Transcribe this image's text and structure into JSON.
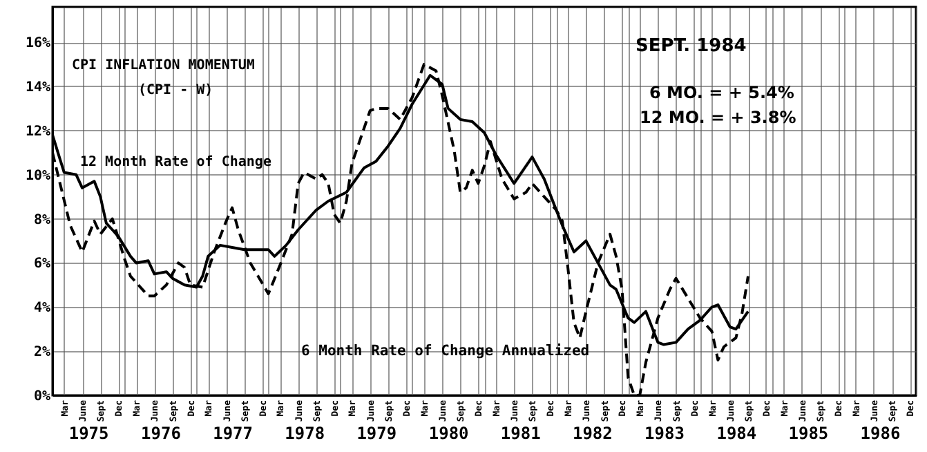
{
  "chart_data": {
    "type": "line",
    "title": "CPI INFLATION MOMENTUM",
    "subtitle": "(CPI - W)",
    "annotations": [
      "SEPT.   1984",
      "6 MO. =   + 5.4%",
      "12 MO. =  + 3.8%"
    ],
    "series": [
      {
        "name": "12 Month Rate of Change",
        "color": "#000000",
        "line_style": "solid",
        "x": [
          "1975-01",
          "1975-02",
          "1975-03",
          "1975-05",
          "1975-06",
          "1975-08",
          "1975-09",
          "1975-10",
          "1975-11",
          "1975-12",
          "1976-02",
          "1976-03",
          "1976-05",
          "1976-06",
          "1976-08",
          "1976-09",
          "1976-11",
          "1977-01",
          "1977-02",
          "1977-03",
          "1977-05",
          "1977-07",
          "1977-09",
          "1977-11",
          "1978-01",
          "1978-02",
          "1978-04",
          "1978-06",
          "1978-09",
          "1978-11",
          "1979-02",
          "1979-05",
          "1979-07",
          "1979-09",
          "1979-11",
          "1980-01",
          "1980-04",
          "1980-05",
          "1980-06",
          "1980-07",
          "1980-09",
          "1980-11",
          "1981-01",
          "1981-03",
          "1981-06",
          "1981-09",
          "1981-11",
          "1982-01",
          "1982-02",
          "1982-04",
          "1982-06",
          "1982-08",
          "1982-10",
          "1982-11",
          "1983-01",
          "1983-02",
          "1983-04",
          "1983-06",
          "1983-07",
          "1983-09",
          "1983-11",
          "1984-01",
          "1984-03",
          "1984-04",
          "1984-06",
          "1984-07",
          "1984-09"
        ],
        "values": [
          11.8,
          10.9,
          10.1,
          10.0,
          9.4,
          9.7,
          9.0,
          7.8,
          7.5,
          7.2,
          6.3,
          6.0,
          6.1,
          5.5,
          5.6,
          5.3,
          5.0,
          4.9,
          5.4,
          6.3,
          6.8,
          6.7,
          6.6,
          6.6,
          6.6,
          6.3,
          6.8,
          7.5,
          8.4,
          8.8,
          9.2,
          10.3,
          10.6,
          11.3,
          12.1,
          13.2,
          14.5,
          14.3,
          14.1,
          13.0,
          12.5,
          12.4,
          11.9,
          10.9,
          9.6,
          10.8,
          9.8,
          8.4,
          7.7,
          6.5,
          7.0,
          6.0,
          5.0,
          4.8,
          3.5,
          3.3,
          3.8,
          2.4,
          2.3,
          2.4,
          3.0,
          3.4,
          4.0,
          4.1,
          3.1,
          3.0,
          3.8
        ]
      },
      {
        "name": "6 Month Rate of Change Annualized",
        "color": "#000000",
        "line_style": "dashed",
        "x": [
          "1975-01",
          "1975-04",
          "1975-06",
          "1975-08",
          "1975-09",
          "1975-11",
          "1976-01",
          "1976-02",
          "1976-05",
          "1976-06",
          "1976-08",
          "1976-10",
          "1976-11",
          "1976-12",
          "1977-02",
          "1977-04",
          "1977-06",
          "1977-07",
          "1977-08",
          "1977-10",
          "1978-01",
          "1978-03",
          "1978-05",
          "1978-06",
          "1978-07",
          "1978-09",
          "1978-10",
          "1978-11",
          "1978-12",
          "1979-01",
          "1979-02",
          "1979-03",
          "1979-06",
          "1979-07",
          "1979-09",
          "1979-11",
          "1980-01",
          "1980-03",
          "1980-05",
          "1980-06",
          "1980-08",
          "1980-09",
          "1980-10",
          "1980-11",
          "1980-12",
          "1981-01",
          "1981-02",
          "1981-04",
          "1981-06",
          "1981-08",
          "1981-09",
          "1982-01",
          "1982-02",
          "1982-03",
          "1982-04",
          "1982-05",
          "1982-06",
          "1982-08",
          "1982-10",
          "1982-11",
          "1982-12",
          "1983-01",
          "1983-02",
          "1983-03",
          "1983-04",
          "1983-06",
          "1983-08",
          "1983-09",
          "1983-11",
          "1984-01",
          "1984-03",
          "1984-04",
          "1984-05",
          "1984-07",
          "1984-08",
          "1984-09"
        ],
        "values": [
          11.0,
          7.7,
          6.5,
          7.9,
          7.3,
          8.0,
          6.2,
          5.4,
          4.5,
          4.5,
          5.0,
          6.0,
          5.8,
          5.0,
          4.9,
          6.5,
          7.9,
          8.5,
          7.5,
          6.0,
          4.6,
          5.9,
          7.3,
          9.6,
          10.1,
          9.8,
          10.0,
          9.6,
          8.2,
          7.8,
          8.8,
          10.5,
          12.9,
          13.0,
          13.0,
          12.5,
          13.5,
          15.0,
          14.7,
          13.6,
          11.1,
          9.2,
          9.4,
          10.2,
          9.6,
          10.4,
          11.5,
          9.8,
          8.9,
          9.2,
          9.6,
          8.4,
          7.9,
          5.8,
          3.3,
          2.6,
          3.8,
          6.0,
          7.3,
          6.3,
          4.8,
          0.8,
          0.0,
          0.0,
          1.5,
          3.5,
          4.8,
          5.3,
          4.4,
          3.5,
          2.9,
          1.6,
          2.2,
          2.6,
          3.7,
          5.4
        ]
      }
    ],
    "xlim": [
      "1975-01",
      "1987-01"
    ],
    "xticks": [
      {
        "value": "1975-01",
        "label": null
      },
      {
        "value": "1975-03",
        "label": "Mar"
      },
      {
        "value": "1975-06",
        "label": "June"
      },
      {
        "value": "1975-09",
        "label": "Sept"
      },
      {
        "value": "1975-12",
        "label": "Dec"
      },
      {
        "value": "1976-01",
        "label": null
      },
      {
        "value": "1976-03",
        "label": "Mar"
      },
      {
        "value": "1976-06",
        "label": "June"
      },
      {
        "value": "1976-09",
        "label": "Sept"
      },
      {
        "value": "1976-12",
        "label": "Dec"
      },
      {
        "value": "1977-01",
        "label": null
      },
      {
        "value": "1977-03",
        "label": "Mar"
      },
      {
        "value": "1977-06",
        "label": "June"
      },
      {
        "value": "1977-09",
        "label": "Sept"
      },
      {
        "value": "1977-12",
        "label": "Dec"
      },
      {
        "value": "1978-01",
        "label": null
      },
      {
        "value": "1978-03",
        "label": "Mar"
      },
      {
        "value": "1978-06",
        "label": "June"
      },
      {
        "value": "1978-09",
        "label": "Sept"
      },
      {
        "value": "1978-12",
        "label": "Dec"
      },
      {
        "value": "1979-01",
        "label": null
      },
      {
        "value": "1979-03",
        "label": "Mar"
      },
      {
        "value": "1979-06",
        "label": "June"
      },
      {
        "value": "1979-09",
        "label": "Sept"
      },
      {
        "value": "1979-12",
        "label": "Dec"
      },
      {
        "value": "1980-01",
        "label": null
      },
      {
        "value": "1980-03",
        "label": "Mar"
      },
      {
        "value": "1980-06",
        "label": "June"
      },
      {
        "value": "1980-09",
        "label": "Sept"
      },
      {
        "value": "1980-12",
        "label": "Dec"
      },
      {
        "value": "1981-01",
        "label": null
      },
      {
        "value": "1981-03",
        "label": "Mar"
      },
      {
        "value": "1981-06",
        "label": "June"
      },
      {
        "value": "1981-09",
        "label": "Sept"
      },
      {
        "value": "1981-12",
        "label": "Dec"
      },
      {
        "value": "1982-01",
        "label": null
      },
      {
        "value": "1982-03",
        "label": "Mar"
      },
      {
        "value": "1982-06",
        "label": "June"
      },
      {
        "value": "1982-09",
        "label": "Sept"
      },
      {
        "value": "1982-12",
        "label": "Dec"
      },
      {
        "value": "1983-01",
        "label": null
      },
      {
        "value": "1983-03",
        "label": "Mar"
      },
      {
        "value": "1983-06",
        "label": "June"
      },
      {
        "value": "1983-09",
        "label": "Sept"
      },
      {
        "value": "1983-12",
        "label": "Dec"
      },
      {
        "value": "1984-01",
        "label": null
      },
      {
        "value": "1984-03",
        "label": "Mar"
      },
      {
        "value": "1984-06",
        "label": "June"
      },
      {
        "value": "1984-09",
        "label": "Sept"
      },
      {
        "value": "1984-12",
        "label": "Dec"
      },
      {
        "value": "1985-01",
        "label": null
      },
      {
        "value": "1985-03",
        "label": "Mar"
      },
      {
        "value": "1985-06",
        "label": "June"
      },
      {
        "value": "1985-09",
        "label": "Sept"
      },
      {
        "value": "1985-12",
        "label": "Dec"
      },
      {
        "value": "1986-01",
        "label": null
      },
      {
        "value": "1986-03",
        "label": "Mar"
      },
      {
        "value": "1986-06",
        "label": "June"
      },
      {
        "value": "1986-09",
        "label": "Sept"
      },
      {
        "value": "1986-12",
        "label": "Dec"
      },
      {
        "value": "1987-01",
        "label": null
      }
    ],
    "x2lim": [
      "1975-01",
      "1987-01"
    ],
    "x2ticks": [
      {
        "value": "1975-07",
        "label": "1975"
      },
      {
        "value": "1976-07",
        "label": "1976"
      },
      {
        "value": "1977-07",
        "label": "1977"
      },
      {
        "value": "1978-07",
        "label": "1978"
      },
      {
        "value": "1979-07",
        "label": "1979"
      },
      {
        "value": "1980-07",
        "label": "1980"
      },
      {
        "value": "1981-07",
        "label": "1981"
      },
      {
        "value": "1982-07",
        "label": "1982"
      },
      {
        "value": "1983-07",
        "label": "1983"
      },
      {
        "value": "1984-07",
        "label": "1984"
      },
      {
        "value": "1985-07",
        "label": "1985"
      },
      {
        "value": "1986-07",
        "label": "1986"
      }
    ],
    "ylim": [
      0,
      17.6
    ],
    "yticks": [
      {
        "value": 0,
        "label": "0%"
      },
      {
        "value": 2,
        "label": "2%"
      },
      {
        "value": 4,
        "label": "4%"
      },
      {
        "value": 6,
        "label": "6%"
      },
      {
        "value": 8,
        "label": "8%"
      },
      {
        "value": 10,
        "label": "10%"
      },
      {
        "value": 12,
        "label": "12%"
      },
      {
        "value": 14,
        "label": "14%"
      },
      {
        "value": 16,
        "label": "16%"
      }
    ],
    "grid": true
  }
}
